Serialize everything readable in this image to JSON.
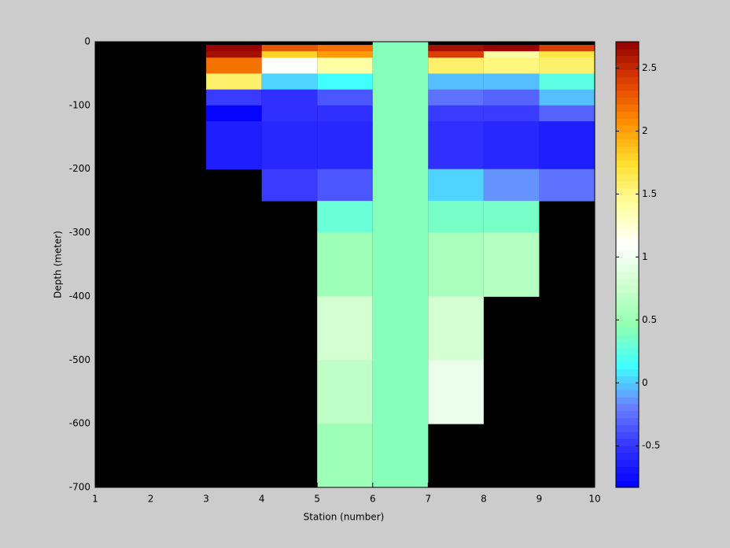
{
  "chart_data": {
    "type": "heatmap",
    "xlabel": "Station (number)",
    "ylabel": "Depth (meter)",
    "x": [
      1,
      2,
      3,
      4,
      5,
      6,
      7,
      8,
      9,
      10
    ],
    "y": [
      0,
      -5,
      -15,
      -25,
      -50,
      -75,
      -100,
      -125,
      -200,
      -250,
      -300,
      -400,
      -500,
      -600,
      -700
    ],
    "z": [
      [
        null,
        null,
        null,
        null,
        null,
        0.4,
        null,
        null,
        null
      ],
      [
        null,
        null,
        2.7,
        2.3,
        2.2,
        0.4,
        2.65,
        2.7,
        2.4
      ],
      [
        null,
        null,
        2.6,
        1.8,
        2.0,
        0.4,
        2.4,
        1.4,
        1.7
      ],
      [
        null,
        null,
        2.2,
        1.1,
        1.4,
        0.4,
        1.6,
        1.5,
        1.6
      ],
      [
        null,
        null,
        1.6,
        0.0,
        0.15,
        0.4,
        -0.05,
        -0.05,
        0.25
      ],
      [
        null,
        null,
        -0.45,
        -0.55,
        -0.35,
        0.4,
        -0.25,
        -0.3,
        -0.05
      ],
      [
        null,
        null,
        -0.8,
        -0.55,
        -0.5,
        0.4,
        -0.45,
        -0.45,
        -0.3
      ],
      [
        null,
        null,
        -0.65,
        -0.6,
        -0.6,
        0.4,
        -0.5,
        -0.6,
        -0.65
      ],
      [
        null,
        null,
        null,
        -0.45,
        -0.35,
        0.4,
        0.0,
        -0.15,
        -0.25
      ],
      [
        null,
        null,
        null,
        null,
        0.3,
        0.4,
        0.35,
        0.35,
        null
      ],
      [
        null,
        null,
        null,
        null,
        0.5,
        0.4,
        0.6,
        0.65,
        null
      ],
      [
        null,
        null,
        null,
        null,
        0.8,
        0.4,
        0.8,
        null,
        null
      ],
      [
        null,
        null,
        null,
        null,
        0.7,
        0.4,
        0.95,
        null,
        null
      ],
      [
        null,
        null,
        null,
        null,
        0.5,
        0.4,
        null,
        null,
        null
      ]
    ],
    "xlim": [
      1,
      10
    ],
    "xticks": [
      1,
      2,
      3,
      4,
      5,
      6,
      7,
      8,
      9,
      10
    ],
    "ylim": [
      -700,
      0
    ],
    "yticks": [
      0,
      -100,
      -200,
      -300,
      -400,
      -500,
      -600,
      -700
    ],
    "clim": [
      -0.83,
      2.71
    ],
    "cticks": [
      -0.5,
      0,
      0.5,
      1,
      1.5,
      2,
      2.5
    ],
    "colormap": [
      "#0000ff",
      "#3232ff",
      "#6a80ff",
      "#40ffff",
      "#90ffb0",
      "#d0ffd0",
      "#ffffff",
      "#ffffa0",
      "#ffe030",
      "#ff9000",
      "#e04000",
      "#900000"
    ],
    "colorbar_levels": 64,
    "background": "#000000"
  }
}
